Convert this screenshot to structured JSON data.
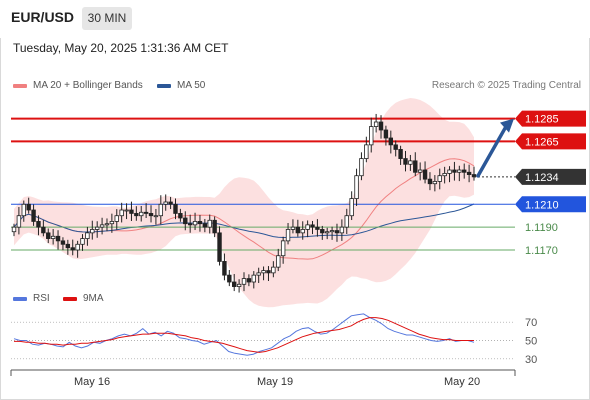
{
  "header": {
    "symbol": "EUR/USD",
    "timeframe": "30 MIN",
    "timestamp": "Tuesday, May 20, 2025 1:31:36 AM CET",
    "research_credit": "Research © 2025 Trading Central"
  },
  "legend": {
    "ma20": {
      "label": "MA 20 + Bollinger Bands",
      "color": "#f08080"
    },
    "ma50": {
      "label": "MA 50",
      "color": "#2b5797"
    }
  },
  "rsi_legend": {
    "rsi": {
      "label": "RSI",
      "color": "#5577dd"
    },
    "ma9": {
      "label": "9MA",
      "color": "#dd1111"
    }
  },
  "colors": {
    "resistance": "#dd1111",
    "pivot": "#2255dd",
    "support": "#66aa66",
    "candle": "#222222",
    "current_tag": "#333333",
    "forecast_arrow": "#2b5797"
  },
  "chart_data": [
    {
      "type": "candlestick",
      "ylim": [
        1.1135,
        1.131
      ],
      "x_tick_labels": [
        "May 16",
        "May 19",
        "May 20"
      ],
      "current_price": 1.1234,
      "levels": [
        {
          "label": "1.1285",
          "value": 1.1285,
          "kind": "resistance"
        },
        {
          "label": "1.1265",
          "value": 1.1265,
          "kind": "resistance"
        },
        {
          "label": "1.1210",
          "value": 1.121,
          "kind": "pivot"
        },
        {
          "label": "1.1190",
          "value": 1.119,
          "kind": "support"
        },
        {
          "label": "1.1170",
          "value": 1.117,
          "kind": "support"
        }
      ],
      "current_tag": "1.1234",
      "forecast_target": 1.1285,
      "close": [
        1.119,
        1.12,
        1.121,
        1.1205,
        1.1195,
        1.119,
        1.1185,
        1.118,
        1.1182,
        1.1178,
        1.1175,
        1.1172,
        1.117,
        1.1175,
        1.118,
        1.1185,
        1.1188,
        1.119,
        1.1192,
        1.1193,
        1.1195,
        1.12,
        1.1205,
        1.1205,
        1.1202,
        1.12,
        1.1203,
        1.1202,
        1.12,
        1.12,
        1.121,
        1.1212,
        1.121,
        1.1202,
        1.1198,
        1.1193,
        1.1192,
        1.1195,
        1.1193,
        1.119,
        1.1196,
        1.1185,
        1.116,
        1.1148,
        1.1142,
        1.1138,
        1.114,
        1.1145,
        1.1142,
        1.1148,
        1.115,
        1.1152,
        1.115,
        1.1155,
        1.1165,
        1.1178,
        1.1188,
        1.119,
        1.1185,
        1.1188,
        1.1192,
        1.119,
        1.1188,
        1.1185,
        1.1186,
        1.1187,
        1.1185,
        1.119,
        1.12,
        1.1215,
        1.1235,
        1.125,
        1.1262,
        1.1278,
        1.1282,
        1.1275,
        1.1268,
        1.1262,
        1.1258,
        1.125,
        1.1245,
        1.1248,
        1.1238,
        1.124,
        1.1232,
        1.1228,
        1.123,
        1.1235,
        1.1237,
        1.124,
        1.1238,
        1.124,
        1.1238,
        1.1236,
        1.1234
      ]
    },
    {
      "type": "line",
      "title": "RSI",
      "ylim": [
        20,
        80
      ],
      "y_ticks": [
        70,
        50,
        30
      ],
      "series": [
        {
          "name": "RSI",
          "values": [
            52,
            50,
            50,
            46,
            45,
            47,
            46,
            44,
            43,
            48,
            44,
            42,
            44,
            48,
            47,
            50,
            52,
            55,
            57,
            55,
            58,
            63,
            57,
            59,
            55,
            60,
            58,
            53,
            52,
            50,
            49,
            46,
            48,
            50,
            44,
            38,
            36,
            35,
            34,
            35,
            38,
            40,
            42,
            47,
            52,
            55,
            60,
            63,
            64,
            60,
            57,
            58,
            62,
            67,
            72,
            77,
            78,
            79,
            75,
            72,
            68,
            63,
            60,
            58,
            56,
            56,
            54,
            52,
            50,
            49,
            50,
            52,
            49,
            50,
            50,
            48
          ]
        },
        {
          "name": "9MA",
          "values": [
            49,
            49,
            48,
            48,
            47,
            47,
            46,
            46,
            45,
            46,
            46,
            47,
            47,
            48,
            49,
            50,
            51,
            53,
            54,
            55,
            56,
            57,
            57,
            58,
            58,
            58,
            57,
            56,
            55,
            53,
            52,
            50,
            49,
            48,
            47,
            45,
            43,
            41,
            39,
            38,
            37,
            38,
            40,
            42,
            45,
            48,
            51,
            54,
            56,
            58,
            59,
            60,
            61,
            62,
            64,
            66,
            70,
            73,
            75,
            75,
            74,
            72,
            69,
            66,
            63,
            60,
            57,
            55,
            53,
            52,
            51,
            51,
            50,
            50,
            50,
            50
          ]
        }
      ]
    }
  ]
}
